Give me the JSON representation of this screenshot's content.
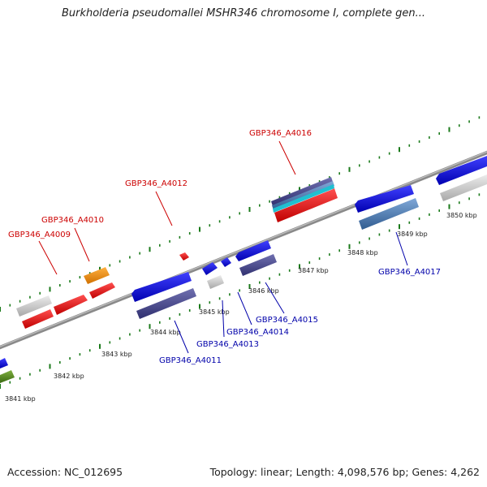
{
  "title": "Burkholderia pseudomallei MSHR346 chromosome I, complete gen...",
  "footer": {
    "accession": "Accession: NC_012695",
    "summary": "Topology: linear; Length: 4,098,576 bp; Genes: 4,262"
  },
  "scale_labels": [
    "3841 kbp",
    "3842 kbp",
    "3843 kbp",
    "3844 kbp",
    "3845 kbp",
    "3846 kbp",
    "3847 kbp",
    "3848 kbp",
    "3849 kbp",
    "3850 kbp"
  ],
  "gene_labels_top": [
    "GBP346_A4009",
    "GBP346_A4010",
    "GBP346_A4012",
    "GBP346_A4016"
  ],
  "gene_labels_bottom": [
    "GBP346_A4011",
    "GBP346_A4013",
    "GBP346_A4014",
    "GBP346_A4015",
    "GBP346_A4017"
  ],
  "colors": {
    "backbone": "#888888",
    "tick": "#1a7a1a",
    "red": "#ee1111",
    "blue": "#1111dd",
    "navy": "#4a4a8c",
    "grey": "#c8c8c8",
    "orange": "#f09010",
    "olive": "#5a8a20",
    "steel": "#4a7ab0",
    "cyan": "#20c0d0"
  }
}
